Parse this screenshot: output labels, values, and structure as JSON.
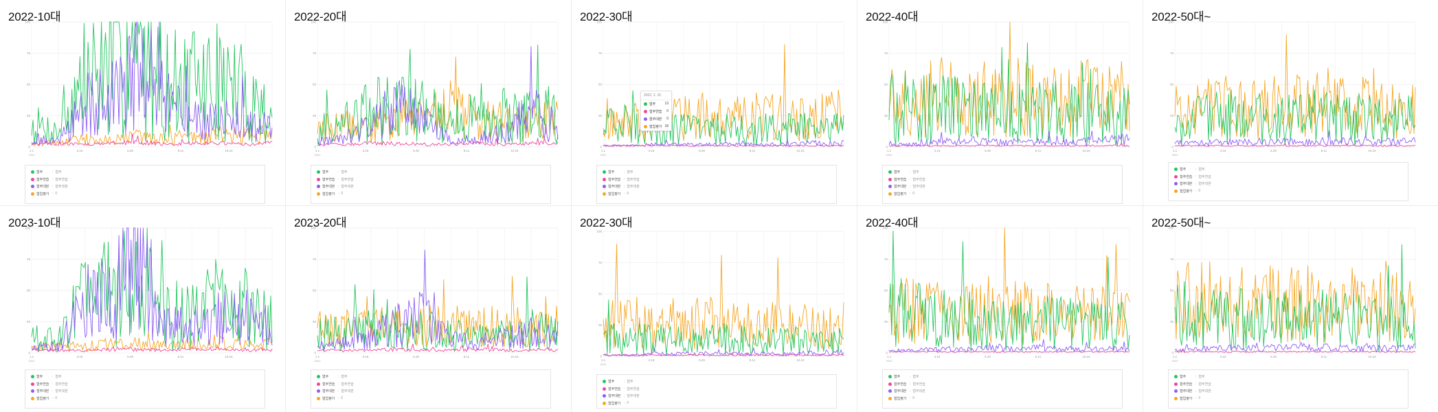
{
  "series_meta": [
    {
      "name": "협주",
      "legend_value": "협주",
      "color": "#22c55e"
    },
    {
      "name": "협주연습",
      "legend_value": "협주연습",
      "color": "#ec4899"
    },
    {
      "name": "협주대본",
      "legend_value": "협주대본",
      "color": "#8b5cf6"
    },
    {
      "name": "협업평가",
      "legend_value": "0",
      "color": "#f5a623"
    }
  ],
  "axis": {
    "ylim": [
      0,
      100
    ],
    "yticks": [
      "100",
      "75",
      "50",
      "25",
      "0"
    ],
    "xticks": [
      "1.1",
      "3.16",
      "5.29",
      "8.11",
      "10.24"
    ],
    "x_year_note": "2022"
  },
  "tooltip": {
    "date": "2022. 2. 15",
    "rows": [
      {
        "name": "협주",
        "value": "13"
      },
      {
        "name": "협주연습",
        "value": "0"
      },
      {
        "name": "협주대본",
        "value": "0"
      },
      {
        "name": "협업평가",
        "value": "18"
      }
    ]
  },
  "chart_data": [
    {
      "type": "line",
      "title": "2022-10대",
      "ylim": [
        0,
        100
      ],
      "x": [
        "1.1",
        "2.6",
        "3.16",
        "4.20",
        "5.29",
        "7.3",
        "8.11",
        "9.15",
        "10.24",
        "12.31"
      ],
      "series": [
        {
          "name": "협주",
          "values": [
            18,
            12,
            55,
            65,
            78,
            50,
            48,
            52,
            42,
            25
          ]
        },
        {
          "name": "협주연습",
          "values": [
            2,
            3,
            2,
            3,
            4,
            2,
            3,
            3,
            2,
            3
          ]
        },
        {
          "name": "협주대본",
          "values": [
            6,
            4,
            35,
            38,
            70,
            35,
            20,
            22,
            20,
            18
          ]
        },
        {
          "name": "협업평가",
          "values": [
            4,
            3,
            6,
            5,
            8,
            6,
            7,
            10,
            9,
            8
          ]
        }
      ]
    },
    {
      "type": "line",
      "title": "2022-20대",
      "ylim": [
        0,
        100
      ],
      "x": [
        "1.1",
        "2.6",
        "3.16",
        "4.20",
        "5.29",
        "7.3",
        "8.11",
        "9.15",
        "10.24",
        "12.31"
      ],
      "series": [
        {
          "name": "협주",
          "values": [
            12,
            20,
            28,
            32,
            28,
            22,
            22,
            25,
            28,
            22
          ]
        },
        {
          "name": "협주연습",
          "values": [
            2,
            2,
            3,
            3,
            2,
            2,
            3,
            2,
            3,
            3
          ]
        },
        {
          "name": "협주대본",
          "values": [
            4,
            6,
            18,
            32,
            22,
            5,
            6,
            12,
            28,
            15
          ]
        },
        {
          "name": "협업평가",
          "values": [
            15,
            15,
            18,
            24,
            22,
            30,
            22,
            20,
            18,
            25
          ]
        }
      ]
    },
    {
      "type": "line",
      "title": "2022-30대",
      "ylim": [
        0,
        100
      ],
      "x": [
        "1.1",
        "2.6",
        "3.16",
        "4.20",
        "5.29",
        "7.3",
        "8.11",
        "9.15",
        "10.24",
        "12.31"
      ],
      "series": [
        {
          "name": "협주",
          "values": [
            15,
            18,
            15,
            14,
            14,
            15,
            14,
            15,
            13,
            14
          ]
        },
        {
          "name": "협주연습",
          "values": [
            1,
            1,
            1,
            1,
            1,
            1,
            1,
            1,
            1,
            1
          ]
        },
        {
          "name": "협주대본",
          "values": [
            1,
            1,
            2,
            2,
            2,
            2,
            2,
            2,
            3,
            3
          ]
        },
        {
          "name": "협업평가",
          "values": [
            20,
            22,
            22,
            25,
            25,
            24,
            25,
            25,
            24,
            26
          ]
        }
      ]
    },
    {
      "type": "line",
      "title": "2022-40대",
      "ylim": [
        0,
        100
      ],
      "x": [
        "1.1",
        "2.6",
        "3.16",
        "4.20",
        "5.29",
        "7.3",
        "8.11",
        "9.15",
        "10.24",
        "12.31"
      ],
      "series": [
        {
          "name": "협주",
          "values": [
            30,
            32,
            30,
            28,
            26,
            26,
            28,
            28,
            25,
            26
          ]
        },
        {
          "name": "협주연습",
          "values": [
            1,
            1,
            1,
            1,
            1,
            1,
            1,
            1,
            1,
            1
          ]
        },
        {
          "name": "협주대본",
          "values": [
            2,
            2,
            4,
            5,
            4,
            4,
            4,
            4,
            5,
            6
          ]
        },
        {
          "name": "협업평가",
          "values": [
            35,
            38,
            40,
            38,
            38,
            40,
            40,
            38,
            40,
            40
          ]
        }
      ]
    },
    {
      "type": "line",
      "title": "2022-50대~",
      "ylim": [
        0,
        100
      ],
      "x": [
        "1.1",
        "2.6",
        "3.16",
        "4.20",
        "5.29",
        "7.3",
        "8.11",
        "9.15",
        "10.24",
        "12.31"
      ],
      "series": [
        {
          "name": "협주",
          "values": [
            20,
            22,
            24,
            22,
            22,
            24,
            22,
            22,
            20,
            22
          ]
        },
        {
          "name": "협주연습",
          "values": [
            1,
            1,
            1,
            1,
            1,
            1,
            1,
            1,
            1,
            1
          ]
        },
        {
          "name": "협주대본",
          "values": [
            3,
            3,
            4,
            4,
            4,
            4,
            5,
            4,
            4,
            5
          ]
        },
        {
          "name": "협업평가",
          "values": [
            28,
            30,
            32,
            30,
            32,
            34,
            32,
            32,
            30,
            32
          ]
        }
      ]
    },
    {
      "type": "line",
      "title": "2023-10대",
      "ylim": [
        0,
        100
      ],
      "x": [
        "1.1",
        "2.6",
        "3.16",
        "4.20",
        "5.29",
        "7.3",
        "8.11",
        "9.15",
        "10.24",
        "12.31"
      ],
      "series": [
        {
          "name": "협주",
          "values": [
            15,
            10,
            45,
            50,
            55,
            30,
            32,
            40,
            38,
            30
          ]
        },
        {
          "name": "협주연습",
          "values": [
            2,
            2,
            2,
            3,
            3,
            2,
            3,
            3,
            2,
            3
          ]
        },
        {
          "name": "협주대본",
          "values": [
            5,
            6,
            40,
            45,
            75,
            25,
            20,
            28,
            30,
            20
          ]
        },
        {
          "name": "협업평가",
          "values": [
            6,
            5,
            6,
            7,
            8,
            6,
            8,
            9,
            8,
            8
          ]
        }
      ]
    },
    {
      "type": "line",
      "title": "2023-20대",
      "ylim": [
        0,
        100
      ],
      "x": [
        "1.1",
        "2.6",
        "3.16",
        "4.20",
        "5.29",
        "7.3",
        "8.11",
        "9.15",
        "10.24",
        "12.31"
      ],
      "series": [
        {
          "name": "협주",
          "values": [
            15,
            15,
            18,
            20,
            20,
            15,
            12,
            14,
            18,
            15
          ]
        },
        {
          "name": "협주연습",
          "values": [
            2,
            2,
            2,
            3,
            2,
            2,
            3,
            2,
            2,
            3
          ]
        },
        {
          "name": "협주대본",
          "values": [
            5,
            8,
            12,
            22,
            30,
            10,
            8,
            12,
            18,
            12
          ]
        },
        {
          "name": "협업평가",
          "values": [
            20,
            20,
            20,
            22,
            22,
            22,
            20,
            22,
            20,
            22
          ]
        }
      ]
    },
    {
      "type": "line",
      "title": "2022-30대",
      "ylim": [
        0,
        100
      ],
      "x": [
        "1.1",
        "2.6",
        "3.16",
        "4.20",
        "5.29",
        "7.3",
        "8.11",
        "9.15",
        "10.24",
        "12.31"
      ],
      "series": [
        {
          "name": "협주",
          "values": [
            18,
            16,
            15,
            14,
            14,
            14,
            12,
            12,
            12,
            12
          ]
        },
        {
          "name": "협주연습",
          "values": [
            1,
            1,
            1,
            1,
            1,
            1,
            1,
            1,
            1,
            1
          ]
        },
        {
          "name": "협주대본",
          "values": [
            1,
            1,
            2,
            2,
            2,
            2,
            2,
            2,
            3,
            3
          ]
        },
        {
          "name": "협업평가",
          "values": [
            28,
            28,
            26,
            26,
            27,
            26,
            26,
            24,
            25,
            24
          ]
        }
      ]
    },
    {
      "type": "line",
      "title": "2022-40대",
      "ylim": [
        0,
        100
      ],
      "x": [
        "1.1",
        "2.6",
        "3.16",
        "4.20",
        "5.29",
        "7.3",
        "8.11",
        "9.15",
        "10.24",
        "12.31"
      ],
      "series": [
        {
          "name": "협주",
          "values": [
            30,
            30,
            28,
            26,
            24,
            24,
            24,
            22,
            22,
            22
          ]
        },
        {
          "name": "협주연습",
          "values": [
            1,
            1,
            1,
            1,
            1,
            1,
            1,
            1,
            1,
            1
          ]
        },
        {
          "name": "협주대본",
          "values": [
            2,
            2,
            3,
            3,
            4,
            4,
            4,
            3,
            3,
            3
          ]
        },
        {
          "name": "협업평가",
          "values": [
            32,
            34,
            32,
            32,
            32,
            32,
            32,
            30,
            30,
            30
          ]
        }
      ]
    },
    {
      "type": "line",
      "title": "2022-50대~",
      "ylim": [
        0,
        100
      ],
      "x": [
        "1.1",
        "2.6",
        "3.16",
        "4.20",
        "5.29",
        "7.3",
        "8.11",
        "9.15",
        "10.24",
        "12.31"
      ],
      "series": [
        {
          "name": "협주",
          "values": [
            32,
            30,
            28,
            28,
            26,
            26,
            26,
            26,
            24,
            26
          ]
        },
        {
          "name": "협주연습",
          "values": [
            1,
            1,
            1,
            1,
            1,
            1,
            1,
            1,
            1,
            1
          ]
        },
        {
          "name": "협주대본",
          "values": [
            2,
            3,
            4,
            4,
            4,
            5,
            4,
            4,
            4,
            4
          ]
        },
        {
          "name": "협업평가",
          "values": [
            42,
            42,
            40,
            40,
            40,
            40,
            40,
            38,
            38,
            38
          ]
        }
      ]
    }
  ]
}
